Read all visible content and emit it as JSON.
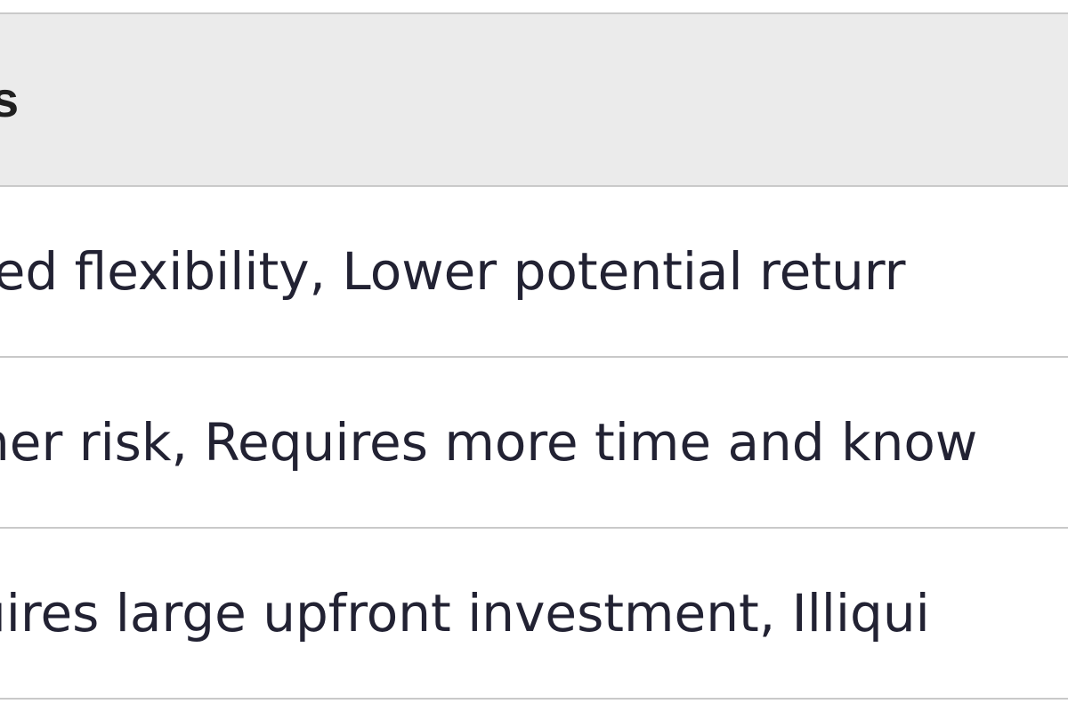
{
  "table": {
    "header": "s",
    "rows": [
      "ted flexibility, Lower potential returr",
      "ner risk, Requires more time and know",
      "uires large upfront investment, Illiqui"
    ]
  }
}
